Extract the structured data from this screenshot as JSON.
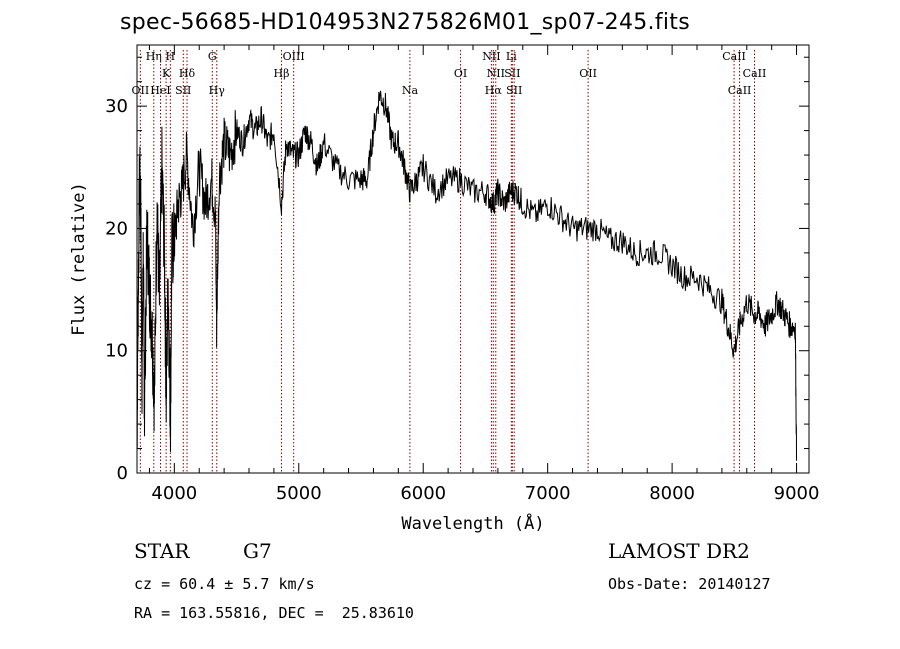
{
  "chart_data": {
    "type": "line",
    "title": "spec-56685-HD104953N275826M01_sp07-245.fits",
    "xlabel": "Wavelength (Å)",
    "ylabel": "Flux (relative)",
    "xlim": [
      3700,
      9100
    ],
    "ylim": [
      0,
      35
    ],
    "x_ticks": [
      4000,
      5000,
      6000,
      7000,
      8000,
      9000
    ],
    "y_ticks": [
      0,
      10,
      20,
      30
    ],
    "grid": false,
    "spectrum": {
      "x": [
        3700,
        3710,
        3720,
        3730,
        3740,
        3750,
        3760,
        3780,
        3800,
        3820,
        3840,
        3860,
        3880,
        3900,
        3920,
        3935,
        3950,
        3968,
        3980,
        4000,
        4030,
        4060,
        4100,
        4150,
        4200,
        4250,
        4300,
        4330,
        4340,
        4360,
        4400,
        4450,
        4500,
        4550,
        4600,
        4650,
        4700,
        4750,
        4800,
        4861,
        4900,
        4950,
        5000,
        5050,
        5100,
        5150,
        5200,
        5300,
        5400,
        5500,
        5550,
        5600,
        5650,
        5700,
        5750,
        5800,
        5850,
        5893,
        5950,
        6000,
        6100,
        6200,
        6300,
        6400,
        6500,
        6563,
        6600,
        6650,
        6700,
        6750,
        6800,
        6900,
        7000,
        7100,
        7200,
        7300,
        7400,
        7500,
        7600,
        7700,
        7800,
        7900,
        8000,
        8100,
        8200,
        8300,
        8400,
        8450,
        8498,
        8542,
        8600,
        8662,
        8700,
        8750,
        8800,
        8850,
        8900,
        8950,
        8990,
        9000
      ],
      "y": [
        3,
        15,
        24,
        22,
        8,
        18,
        5,
        20,
        15,
        12,
        6,
        22,
        14,
        25,
        18,
        6,
        16,
        4,
        18,
        19,
        22,
        23,
        26,
        20,
        25,
        22,
        24,
        21,
        12,
        24,
        27,
        26,
        28,
        27,
        29,
        28,
        29,
        27,
        28,
        22,
        27,
        26,
        26,
        28,
        27,
        25,
        27,
        25,
        24,
        24,
        24,
        28,
        31,
        30,
        27,
        27,
        25,
        23,
        24,
        25,
        23,
        24,
        24,
        23,
        23,
        22,
        23,
        22,
        23,
        23,
        22,
        21,
        22,
        21,
        20,
        20,
        20,
        19,
        19,
        18,
        18,
        18,
        17,
        16,
        16,
        15,
        14,
        12,
        10,
        12,
        14,
        13,
        13,
        12,
        13,
        14,
        13,
        12,
        12,
        1
      ]
    },
    "lines": [
      {
        "name": "OII",
        "wl": 3727,
        "row": 3
      },
      {
        "name": "Hη",
        "wl": 3835,
        "row": 1
      },
      {
        "name": "K",
        "wl": 3934,
        "row": 2
      },
      {
        "name": "H",
        "wl": 3968,
        "row": 1
      },
      {
        "name": "HeI",
        "wl": 3889,
        "row": 3
      },
      {
        "name": "SII",
        "wl": 4072,
        "row": 3
      },
      {
        "name": "Hδ",
        "wl": 4102,
        "row": 2
      },
      {
        "name": "G",
        "wl": 4305,
        "row": 1
      },
      {
        "name": "Hγ",
        "wl": 4341,
        "row": 3
      },
      {
        "name": "Hβ",
        "wl": 4861,
        "row": 2
      },
      {
        "name": "OIII",
        "wl": 4959,
        "row": 1
      },
      {
        "name": "Na",
        "wl": 5893,
        "row": 3
      },
      {
        "name": "OI",
        "wl": 6300,
        "row": 2
      },
      {
        "name": "NII",
        "wl": 6548,
        "row": 1
      },
      {
        "name": "Li",
        "wl": 6708,
        "row": 1
      },
      {
        "name": "NII",
        "wl": 6583,
        "row": 2
      },
      {
        "name": "SII",
        "wl": 6716,
        "row": 2
      },
      {
        "name": "Hα",
        "wl": 6563,
        "row": 3
      },
      {
        "name": "SII",
        "wl": 6731,
        "row": 3
      },
      {
        "name": "OII",
        "wl": 7325,
        "row": 2
      },
      {
        "name": "CaII",
        "wl": 8498,
        "row": 1
      },
      {
        "name": "CaII",
        "wl": 8542,
        "row": 3
      },
      {
        "name": "CaII",
        "wl": 8662,
        "row": 2
      }
    ],
    "line_color": "#8b0000"
  },
  "info": {
    "class": "STAR",
    "subclass": "G7",
    "survey": "LAMOST DR2",
    "cz": "cz = 60.4 ± 5.7 km/s",
    "obs_date": "Obs-Date: 20140127",
    "coords": "RA = 163.55816, DEC =  25.83610"
  }
}
